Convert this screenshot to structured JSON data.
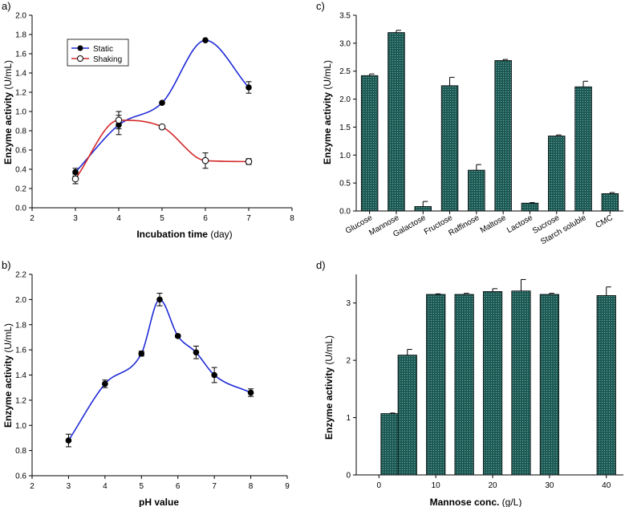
{
  "chart_data": [
    {
      "panel": "a)",
      "type": "line",
      "xlabel_bold": "Incubation time",
      "xlabel_rest": " (day)",
      "ylabel_bold": "Enzyme activity",
      "ylabel_rest": " (U/mL)",
      "xlim": [
        2,
        8
      ],
      "ylim": [
        0,
        2.0
      ],
      "xticks": [
        2,
        3,
        4,
        5,
        6,
        7,
        8
      ],
      "yticks": [
        0,
        0.2,
        0.4,
        0.6,
        0.8,
        1.0,
        1.2,
        1.4,
        1.6,
        1.8,
        2.0
      ],
      "yticklabels": [
        "0.0",
        "0.2",
        "0.4",
        "0.6",
        "0.8",
        "1.0",
        "1.2",
        "1.4",
        "1.6",
        "1.8",
        "2.0"
      ],
      "legend": "top-left",
      "series": [
        {
          "name": "Static",
          "color": "#1f2bd6",
          "marker": "filled",
          "x": [
            3,
            4,
            5,
            6,
            7
          ],
          "y": [
            0.37,
            0.86,
            1.09,
            1.74,
            1.25
          ],
          "err": [
            0.04,
            0.1,
            0.01,
            0.01,
            0.06
          ]
        },
        {
          "name": "Shaking",
          "color": "#d42a2a",
          "marker": "open",
          "x": [
            3,
            4,
            5,
            6,
            7
          ],
          "y": [
            0.3,
            0.91,
            0.84,
            0.49,
            0.48
          ],
          "err": [
            0.05,
            0.09,
            0.01,
            0.08,
            0.03
          ]
        }
      ]
    },
    {
      "panel": "b)",
      "type": "line",
      "xlabel_bold": "pH value",
      "xlabel_rest": "",
      "ylabel_bold": "Enzyme activity",
      "ylabel_rest": " (U/mL)",
      "xlim": [
        2,
        9
      ],
      "ylim": [
        0.6,
        2.2
      ],
      "xticks": [
        2,
        3,
        4,
        5,
        6,
        7,
        8,
        9
      ],
      "yticks": [
        0.6,
        0.8,
        1.0,
        1.2,
        1.4,
        1.6,
        1.8,
        2.0,
        2.2
      ],
      "yticklabels": [
        "0.6",
        "0.8",
        "1.0",
        "1.2",
        "1.4",
        "1.6",
        "1.8",
        "2.0",
        "2.2"
      ],
      "series": [
        {
          "name": "pH",
          "color": "#1f2bd6",
          "marker": "filled",
          "x": [
            3,
            4,
            5,
            5.5,
            6,
            6.5,
            7,
            8
          ],
          "y": [
            0.88,
            1.33,
            1.57,
            2.0,
            1.71,
            1.58,
            1.4,
            1.26
          ],
          "err": [
            0.05,
            0.03,
            0.02,
            0.05,
            0.01,
            0.05,
            0.06,
            0.03
          ]
        }
      ]
    },
    {
      "panel": "c)",
      "type": "bar",
      "xlabel": "",
      "ylabel_bold": "Enzyme activity",
      "ylabel_rest": " (U/mL)",
      "ylim": [
        0,
        3.5
      ],
      "yticks": [
        0,
        0.5,
        1.0,
        1.5,
        2.0,
        2.5,
        3.0,
        3.5
      ],
      "yticklabels": [
        "0.0",
        "0.5",
        "1.0",
        "1.5",
        "2.0",
        "2.5",
        "3.0",
        "3.5"
      ],
      "bar_color": "#1d5a55",
      "categories": [
        "Glucose",
        "Mannose",
        "Galactose",
        "Fructose",
        "Raffinose",
        "Maltose",
        "Lactose",
        "Sucrose",
        "Starch soluble",
        "CMC"
      ],
      "values": [
        2.42,
        3.19,
        0.08,
        2.24,
        0.73,
        2.69,
        0.14,
        1.34,
        2.22,
        0.31
      ],
      "err": [
        0.03,
        0.04,
        0.09,
        0.15,
        0.1,
        0.02,
        0.01,
        0.02,
        0.1,
        0.02
      ]
    },
    {
      "panel": "d)",
      "type": "bar",
      "xlabel_bold": "Mannose conc.",
      "xlabel_rest": " (g/L)",
      "ylabel_bold": "Enzyme activity",
      "ylabel_rest": " (U/mL)",
      "xlim": [
        -4,
        43
      ],
      "ylim": [
        0,
        3.5
      ],
      "xticks": [
        0,
        10,
        20,
        30,
        40
      ],
      "yticks": [
        0,
        1,
        2,
        3
      ],
      "yticklabels": [
        "0",
        "1",
        "2",
        "3"
      ],
      "bar_color": "#1d5a55",
      "x": [
        2,
        5,
        10,
        15,
        20,
        25,
        30,
        40
      ],
      "values": [
        1.07,
        2.09,
        3.15,
        3.15,
        3.2,
        3.21,
        3.15,
        3.13
      ],
      "err": [
        0.01,
        0.1,
        0.01,
        0.02,
        0.05,
        0.2,
        0.02,
        0.15
      ],
      "bar_width": 3.3
    }
  ]
}
